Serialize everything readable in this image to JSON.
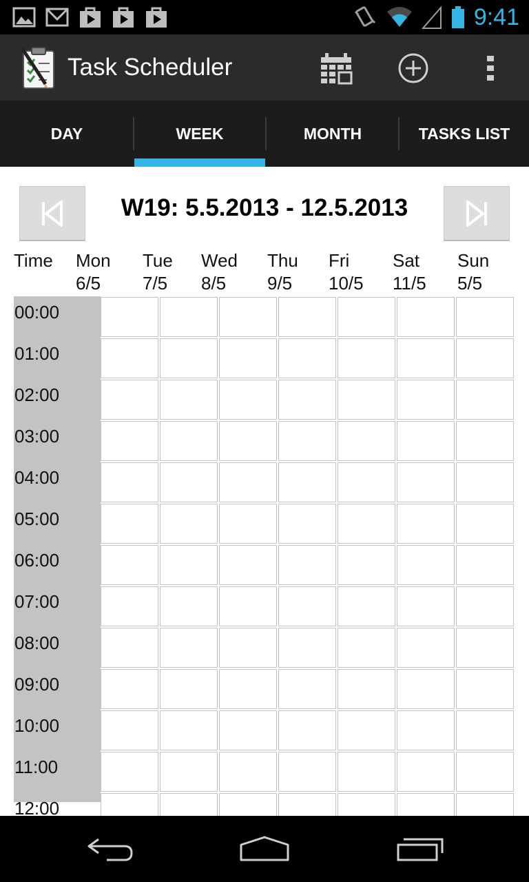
{
  "status_bar": {
    "time": "9:41",
    "left_icons": [
      "gallery-icon",
      "gmail-icon",
      "store-icon",
      "store-icon",
      "store-icon"
    ],
    "right_icons": [
      "vibrate-icon",
      "wifi-icon",
      "signal-icon",
      "battery-icon"
    ],
    "accent": "#33b5e5"
  },
  "action_bar": {
    "title": "Task Scheduler",
    "actions": [
      "calendar-icon",
      "add-circle-icon",
      "overflow-menu-icon"
    ]
  },
  "tabs": [
    {
      "label": "DAY",
      "selected": false
    },
    {
      "label": "WEEK",
      "selected": true
    },
    {
      "label": "MONTH",
      "selected": false
    },
    {
      "label": "TASKS LIST",
      "selected": false
    }
  ],
  "week": {
    "title": "W19: 5.5.2013 - 12.5.2013",
    "prev_icon": "skip-previous-icon",
    "next_icon": "skip-next-icon"
  },
  "columns": {
    "time_label": "Time",
    "days": [
      {
        "name": "Mon",
        "date": "6/5"
      },
      {
        "name": "Tue",
        "date": "7/5"
      },
      {
        "name": "Wed",
        "date": "8/5"
      },
      {
        "name": "Thu",
        "date": "9/5"
      },
      {
        "name": "Fri",
        "date": "10/5"
      },
      {
        "name": "Sat",
        "date": "11/5"
      },
      {
        "name": "Sun",
        "date": "5/5"
      }
    ]
  },
  "hours": [
    "00:00",
    "01:00",
    "02:00",
    "03:00",
    "04:00",
    "05:00",
    "06:00",
    "07:00",
    "08:00",
    "09:00",
    "10:00",
    "11:00",
    "12:00"
  ],
  "nav_bar": [
    "back-icon",
    "home-icon",
    "recents-icon"
  ]
}
